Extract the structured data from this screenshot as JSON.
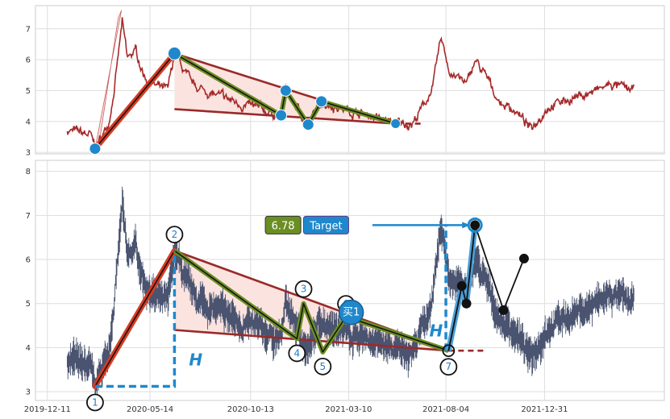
{
  "chart_data": [
    {
      "type": "line",
      "panel": "top",
      "ylim": [
        2.95,
        7.75
      ],
      "yticks": [
        3,
        4,
        5,
        6,
        7
      ],
      "grid": true,
      "colors": {
        "price": "#a52a2a",
        "accent": "#1f88cc",
        "triangle_fill": "#fbe3df",
        "pattern_line": "#6b8e23"
      },
      "pivots": [
        {
          "x": "2020-02-21",
          "y": 3.12
        },
        {
          "x": "2020-06-20",
          "y": 6.2
        },
        {
          "x": "2020-11-28",
          "y": 4.2
        },
        {
          "x": "2020-12-05",
          "y": 5.0
        },
        {
          "x": "2021-01-08",
          "y": 3.9
        },
        {
          "x": "2021-01-28",
          "y": 4.65
        },
        {
          "x": "2021-05-20",
          "y": 3.93
        }
      ]
    },
    {
      "type": "line",
      "panel": "bottom",
      "ylim": [
        2.8,
        8.25
      ],
      "yticks": [
        3,
        4,
        5,
        6,
        7,
        8
      ],
      "xticks": [
        "2019-12-11",
        "2020-05-14",
        "2020-10-13",
        "2021-03-10",
        "2021-08-04",
        "2021-12-31"
      ],
      "grid": true,
      "pivot_labels": [
        "1",
        "2",
        "4",
        "3",
        "5",
        "6",
        "7"
      ],
      "pivots": [
        {
          "x": "2020-02-21",
          "y": 3.12
        },
        {
          "x": "2020-06-20",
          "y": 6.2
        },
        {
          "x": "2020-12-22",
          "y": 4.2
        },
        {
          "x": "2021-01-01",
          "y": 5.0
        },
        {
          "x": "2021-01-30",
          "y": 3.9
        },
        {
          "x": "2021-03-06",
          "y": 4.7
        },
        {
          "x": "2021-08-08",
          "y": 3.93
        }
      ],
      "buy_label": "买1",
      "buy_point": {
        "x": "2021-03-14",
        "y": 4.8
      },
      "target_label": "Target",
      "target_value": "6.78",
      "target_point": {
        "x": "2021-09-17",
        "y": 6.78
      },
      "height_label": "H",
      "projection": [
        {
          "x": "2021-08-08",
          "y": 3.93
        },
        {
          "x": "2021-08-28",
          "y": 5.4
        },
        {
          "x": "2021-09-04",
          "y": 5.0
        },
        {
          "x": "2021-09-17",
          "y": 6.78
        },
        {
          "x": "2021-10-30",
          "y": 4.85
        },
        {
          "x": "2021-11-30",
          "y": 6.02
        }
      ]
    }
  ]
}
